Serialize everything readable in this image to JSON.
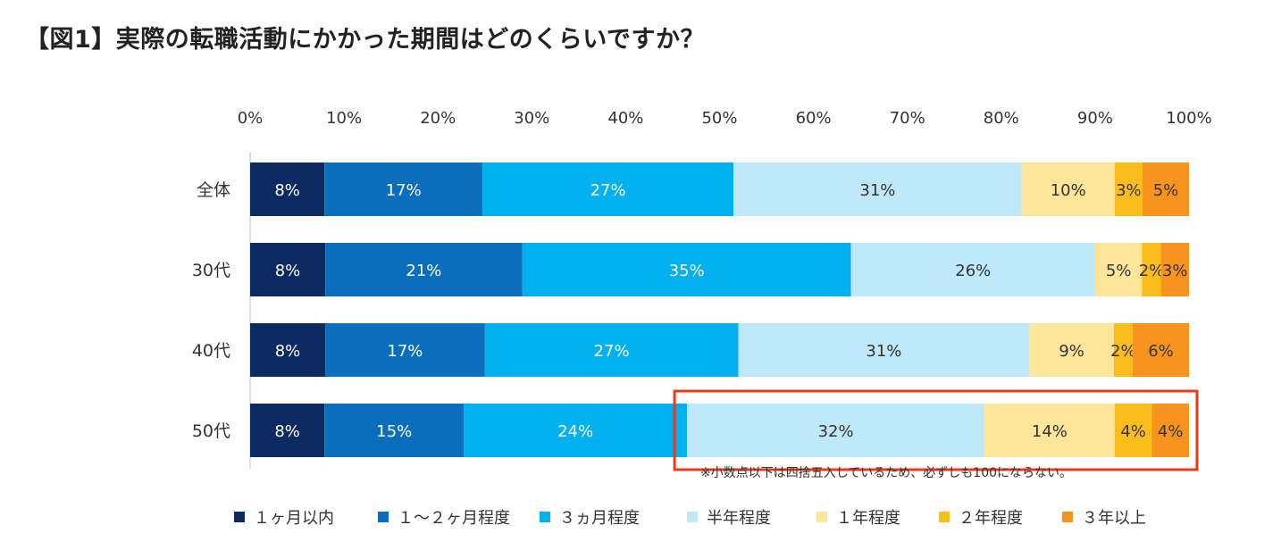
{
  "title": "【図1】実際の転職活動にかかった期間はどのくらいですか？",
  "note": "※小数点以下は四捨五入しているため、必ずしも100にならない。",
  "chart_data": {
    "type": "bar",
    "orientation": "horizontal",
    "stacked": true,
    "xlim": [
      0,
      100
    ],
    "x_ticks": [
      "0%",
      "10%",
      "20%",
      "30%",
      "40%",
      "50%",
      "60%",
      "70%",
      "80%",
      "90%",
      "100%"
    ],
    "categories": [
      "全体",
      "30代",
      "40代",
      "50代"
    ],
    "series": [
      {
        "name": "１ヶ月以内",
        "color": "#0b2a62",
        "values": [
          8,
          8,
          8,
          8
        ],
        "labels": [
          "8%",
          "8%",
          "8%",
          "8%"
        ]
      },
      {
        "name": "１～２ヶ月程度",
        "color": "#0a6ebd",
        "values": [
          17,
          21,
          17,
          15
        ],
        "labels": [
          "17%",
          "21%",
          "17%",
          "15%"
        ]
      },
      {
        "name": "３ヵ月程度",
        "color": "#00b0ef",
        "values": [
          27,
          35,
          27,
          24
        ],
        "labels": [
          "27%",
          "35%",
          "27%",
          "24%"
        ]
      },
      {
        "name": "半年程度",
        "color": "#bfe9fb",
        "values": [
          31,
          26,
          31,
          32
        ],
        "labels": [
          "31%",
          "26%",
          "31%",
          "32%"
        ]
      },
      {
        "name": "１年程度",
        "color": "#fde599",
        "values": [
          10,
          5,
          9,
          14
        ],
        "labels": [
          "10%",
          "5%",
          "9%",
          "14%"
        ]
      },
      {
        "name": "２年程度",
        "color": "#fbbd1e",
        "values": [
          3,
          2,
          2,
          4
        ],
        "labels": [
          "3%",
          "2%",
          "2%",
          "4%"
        ]
      },
      {
        "name": "３年以上",
        "color": "#f7941d",
        "values": [
          5,
          3,
          6,
          4
        ],
        "labels": [
          "5%",
          "3%",
          "6%",
          "4%"
        ]
      }
    ],
    "highlight": {
      "category": "50代",
      "from_series": "半年程度",
      "color": "#e83a1c"
    },
    "legend_position": "bottom",
    "grid": false
  }
}
